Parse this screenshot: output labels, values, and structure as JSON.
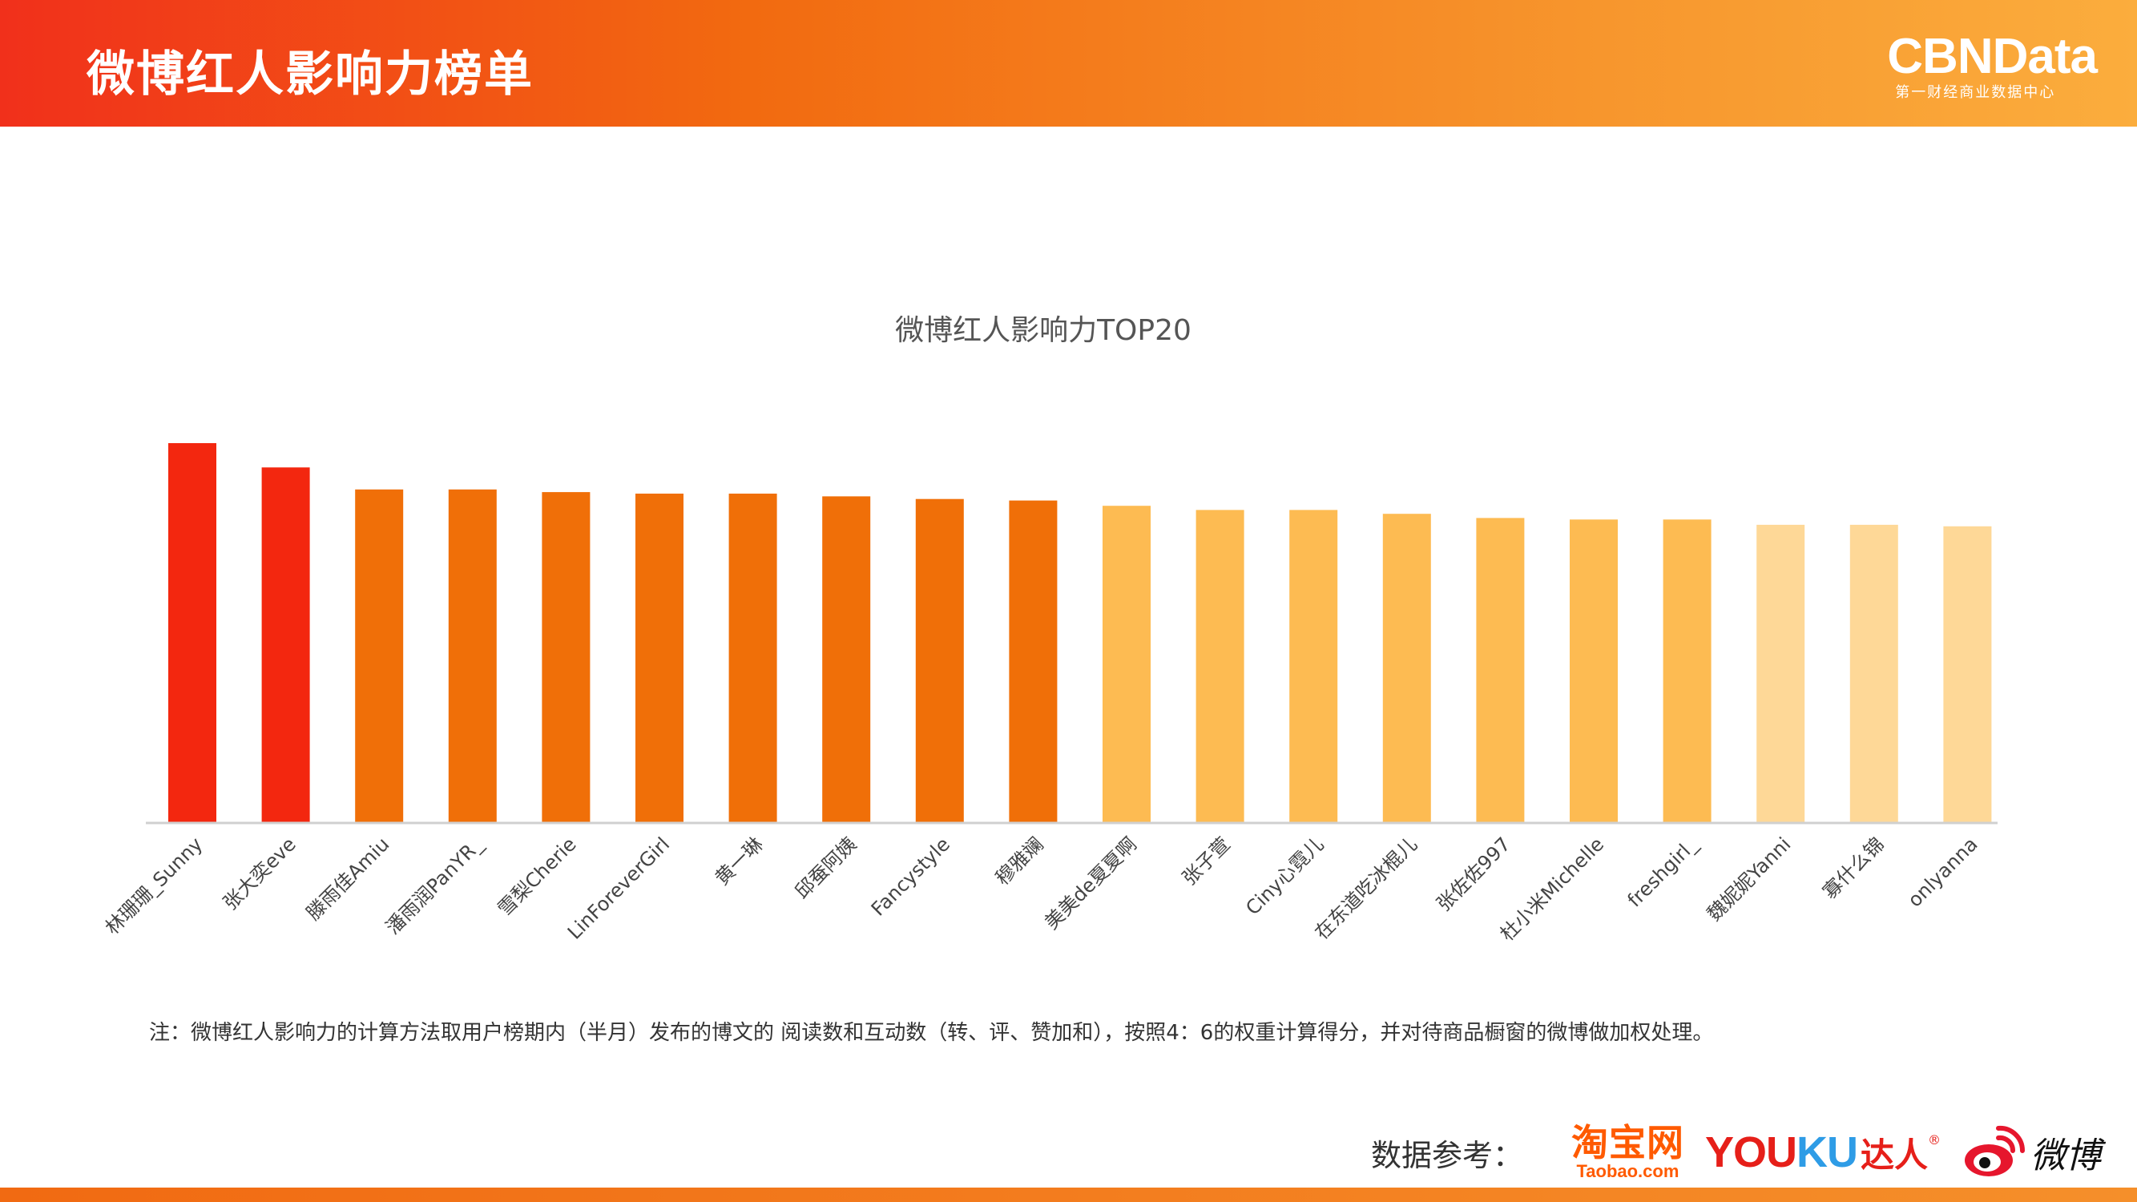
{
  "header": {
    "title": "微博红人影响力榜单"
  },
  "brand": {
    "name": "CBNData",
    "subtitle": "第一财经商业数据中心"
  },
  "chart_data": {
    "type": "bar",
    "title": "微博红人影响力TOP20",
    "xlabel": "",
    "ylabel": "",
    "grid": false,
    "legend": "none",
    "ylim": [
      0,
      100
    ],
    "categories": [
      "林珊珊_Sunny",
      "张大奕eve",
      "滕雨佳Amiu",
      "潘雨润PanYR_",
      "雪梨Cherie",
      "LinForeverGirl",
      "黄一琳",
      "邱蚕阿姨",
      "Fancystyle",
      "穆雅斓",
      "美美de夏夏啊",
      "张子萱",
      "Ciny心霓儿",
      "在东道吃冰棍儿",
      "张佐佐997",
      "杜小米Michelle",
      "freshgirl_",
      "魏妮妮Yanni",
      "寡什么锦",
      "onlyanna"
    ],
    "values": [
      100,
      93.6,
      87.8,
      87.8,
      87.1,
      86.7,
      86.7,
      86.0,
      85.3,
      84.9,
      83.5,
      82.4,
      82.4,
      81.4,
      80.3,
      79.9,
      79.9,
      78.5,
      78.5,
      78.1
    ],
    "bar_colors": [
      "#f3270f",
      "#f3270f",
      "#f06f08",
      "#f06f08",
      "#f06f08",
      "#f06f08",
      "#f06f08",
      "#f06f08",
      "#f06f08",
      "#f06f08",
      "#fdbb52",
      "#fdbb52",
      "#fdbb52",
      "#fdbb52",
      "#fdbb52",
      "#fdbb52",
      "#fdbb52",
      "#fed897",
      "#fed897",
      "#fed897"
    ]
  },
  "note": "注：微博红人影响力的计算方法取用户榜期内（半月）发布的博文的 阅读数和互动数（转、评、赞加和），按照4：6的权重计算得分，并对待商品橱窗的微博做加权处理。",
  "source": {
    "label": "数据参考：",
    "taobao": "淘宝网",
    "taobao_domain": "Taobao.com",
    "youku_yo": "YOU",
    "youku_ku": "KU",
    "daren": "达人",
    "registered": "®",
    "weibo": "微博"
  },
  "colors": {
    "accent": "#f26a10",
    "red": "#f3270f",
    "orange": "#f06f08",
    "amber": "#fdbb52",
    "light": "#fed897"
  }
}
